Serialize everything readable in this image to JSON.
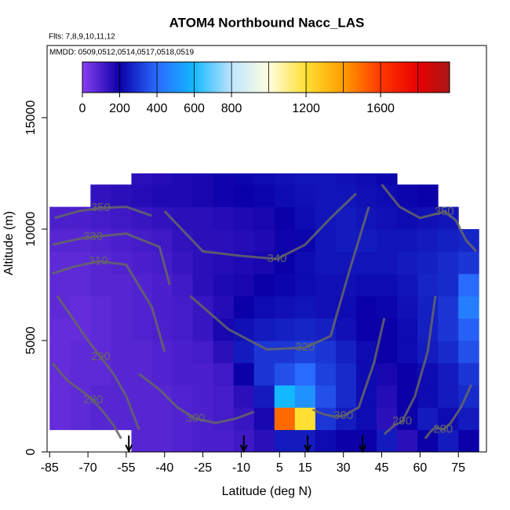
{
  "chart_data": {
    "type": "heatmap",
    "title": "ATOM4 Northbound Nacc_LAS",
    "subtitle": "Flts: 7,8,9,10,11,12",
    "annotation": "MMDD: 0509,0512,0514,0517,0518,0519",
    "xlabel": "Latitude (deg N)",
    "ylabel": "Altitude (m)",
    "xlim": [
      -86,
      86
    ],
    "ylim": [
      0,
      18240
    ],
    "xticks": [
      -85,
      -70,
      -55,
      -40,
      -25,
      -10,
      5,
      15,
      30,
      45,
      60,
      75
    ],
    "yticks": [
      0,
      5000,
      10000,
      15000
    ],
    "x_edges": [
      -85,
      -77,
      -69,
      -61,
      -53,
      -45,
      -37,
      -29,
      -21,
      -13,
      -5,
      3,
      11,
      19,
      27,
      35,
      43,
      51,
      59,
      67,
      75,
      83
    ],
    "y_edges": [
      0,
      1000,
      2000,
      3000,
      4000,
      5000,
      6000,
      7000,
      8000,
      9000,
      10000,
      11000,
      12000,
      12500
    ],
    "values": [
      [
        null,
        null,
        null,
        null,
        80,
        80,
        90,
        100,
        100,
        120,
        150,
        250,
        250,
        220,
        200,
        200,
        250,
        150,
        200,
        250,
        200
      ],
      [
        60,
        70,
        80,
        80,
        80,
        80,
        90,
        100,
        110,
        130,
        180,
        1500,
        1200,
        300,
        250,
        220,
        150,
        200,
        250,
        220,
        250
      ],
      [
        60,
        70,
        80,
        80,
        80,
        80,
        90,
        100,
        110,
        150,
        250,
        600,
        500,
        350,
        280,
        220,
        160,
        200,
        220,
        250,
        280
      ],
      [
        60,
        70,
        70,
        80,
        80,
        90,
        100,
        100,
        120,
        200,
        300,
        350,
        400,
        320,
        280,
        220,
        180,
        200,
        220,
        250,
        300
      ],
      [
        60,
        70,
        70,
        80,
        80,
        90,
        100,
        110,
        150,
        250,
        300,
        300,
        320,
        300,
        260,
        220,
        200,
        220,
        250,
        280,
        350
      ],
      [
        60,
        60,
        70,
        80,
        90,
        100,
        110,
        130,
        180,
        230,
        250,
        260,
        270,
        260,
        230,
        200,
        200,
        220,
        260,
        300,
        380
      ],
      [
        70,
        60,
        70,
        80,
        90,
        100,
        110,
        130,
        160,
        200,
        220,
        230,
        240,
        230,
        220,
        200,
        210,
        230,
        260,
        300,
        450
      ],
      [
        70,
        70,
        80,
        80,
        90,
        100,
        120,
        150,
        170,
        180,
        200,
        210,
        220,
        230,
        230,
        220,
        220,
        240,
        270,
        280,
        400
      ],
      [
        70,
        70,
        80,
        90,
        100,
        110,
        130,
        150,
        160,
        170,
        180,
        200,
        220,
        240,
        240,
        240,
        240,
        250,
        260,
        280,
        300
      ],
      [
        80,
        80,
        90,
        100,
        110,
        120,
        140,
        150,
        150,
        160,
        170,
        190,
        210,
        240,
        250,
        250,
        240,
        240,
        250,
        260,
        270
      ],
      [
        100,
        100,
        110,
        120,
        130,
        140,
        150,
        150,
        160,
        170,
        180,
        200,
        220,
        240,
        250,
        240,
        230,
        220,
        230,
        240,
        null
      ],
      [
        null,
        null,
        140,
        150,
        160,
        170,
        170,
        180,
        190,
        200,
        210,
        220,
        230,
        240,
        240,
        230,
        220,
        210,
        200,
        null,
        null
      ],
      [
        null,
        null,
        null,
        null,
        150,
        160,
        170,
        180,
        190,
        210,
        220,
        230,
        240,
        240,
        230,
        220,
        210,
        null,
        null,
        null,
        null
      ]
    ],
    "colorbar": {
      "clim": [
        0,
        1970
      ],
      "stops": [
        0,
        200,
        400,
        600,
        800,
        1000,
        1200,
        1400,
        1600,
        1800,
        2000
      ],
      "colors": [
        "#8a3ff0",
        "#0b00a8",
        "#2a6bff",
        "#14b8ff",
        "#bfe4ff",
        "#fffde0",
        "#ffe033",
        "#ff9c00",
        "#ff3800",
        "#e80000",
        "#a01a1a"
      ],
      "ticks": [
        0,
        200,
        400,
        600,
        800,
        1200,
        1600
      ]
    },
    "contour_color": "#666666",
    "contours": [
      {
        "level": 350,
        "x": [
          -83,
          -74,
          -65,
          -55,
          -45
        ],
        "y": [
          10500,
          10800,
          10950,
          11000,
          10600
        ]
      },
      {
        "level": 330,
        "x": [
          -84,
          -76,
          -72,
          -68,
          -55,
          -42,
          -38
        ],
        "y": [
          9300,
          9500,
          9600,
          9650,
          9800,
          9200,
          7500
        ]
      },
      {
        "level": 310,
        "x": [
          -84,
          -76,
          -70,
          -66,
          -55,
          -45,
          -40
        ],
        "y": [
          8000,
          8300,
          8450,
          8560,
          8400,
          6500,
          4500
        ]
      },
      {
        "level": 340,
        "x": [
          -40,
          -25,
          -10,
          4,
          15,
          25,
          35
        ],
        "y": [
          10800,
          9000,
          8800,
          8660,
          9300,
          10500,
          11600
        ]
      },
      {
        "level": 320,
        "x": [
          -30,
          -15,
          0,
          15,
          25,
          32,
          40
        ],
        "y": [
          7000,
          5500,
          4600,
          4680,
          5200,
          8000,
          11000
        ]
      },
      {
        "level": 350,
        "x": [
          45,
          52,
          60,
          69.5,
          74,
          78,
          82
        ],
        "y": [
          12000,
          11000,
          10500,
          10780,
          10400,
          9500,
          9000
        ]
      },
      {
        "level": 300,
        "x": [
          -50,
          -42,
          -35,
          -28,
          -20,
          -12,
          -5
        ],
        "y": [
          3500,
          2800,
          2000,
          1500,
          1300,
          1500,
          1800
        ]
      },
      {
        "level": 300,
        "x": [
          18,
          22,
          26,
          30,
          36,
          42,
          46
        ],
        "y": [
          1900,
          1700,
          1600,
          1620,
          2000,
          4000,
          6000
        ]
      },
      {
        "level": 290,
        "x": [
          46,
          48,
          50,
          53,
          58,
          63,
          66
        ],
        "y": [
          800,
          1000,
          1200,
          1370,
          2500,
          4500,
          7000
        ]
      },
      {
        "level": 290,
        "x": [
          -82,
          -76,
          -70,
          -65,
          -60,
          -55,
          -50
        ],
        "y": [
          7000,
          6000,
          5000,
          4260,
          3500,
          2500,
          1000
        ]
      },
      {
        "level": 280,
        "x": [
          -84,
          -78,
          -72,
          -68,
          -64,
          -60,
          -57
        ],
        "y": [
          4000,
          3200,
          2700,
          2320,
          1800,
          1200,
          600
        ]
      },
      {
        "level": 280,
        "x": [
          62,
          64,
          66,
          69,
          72,
          76,
          80
        ],
        "y": [
          600,
          900,
          1100,
          1000,
          1300,
          2000,
          3000
        ]
      }
    ],
    "arrows_x": [
      -54,
      -9,
      16,
      37.5
    ]
  }
}
